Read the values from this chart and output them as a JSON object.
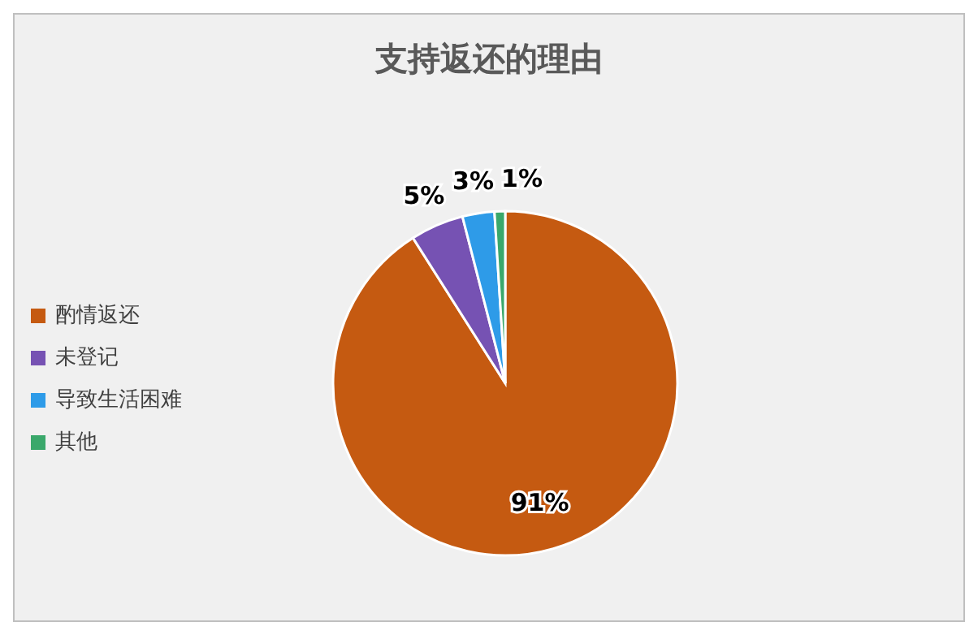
{
  "chart_data": {
    "type": "pie",
    "title": "支持返还的理由",
    "categories": [
      "酌情返还",
      "未登记",
      "导致生活困难",
      "其他"
    ],
    "values": [
      91,
      5,
      3,
      1
    ],
    "value_labels": [
      "91%",
      "5%",
      "3%",
      "1%"
    ],
    "colors": [
      "#c55a11",
      "#7652b3",
      "#2e9be8",
      "#3aa86b"
    ],
    "legend": "left"
  }
}
